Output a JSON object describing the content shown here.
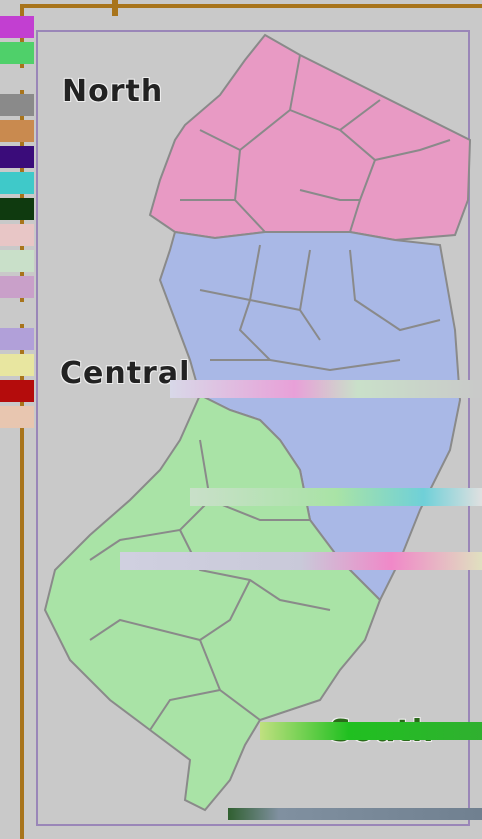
{
  "map": {
    "regions": [
      {
        "id": "north",
        "label": "North",
        "color": "#e89ac4"
      },
      {
        "id": "central",
        "label": "Central",
        "color": "#a9b8e6"
      },
      {
        "id": "south",
        "label": "South",
        "color": "#a9e3a6"
      }
    ],
    "border_color": "#8a8a8a",
    "frame_color": "#a8741b"
  },
  "legend": {
    "swatches": [
      "#c23fd1",
      "#4fd06a",
      "#c9c9c9",
      "#8a8a8a",
      "#c98a4f",
      "#3a0c7a",
      "#3fc9c9",
      "#0f3a0f",
      "#e8c6c6",
      "#c9e0c9",
      "#c9a0c9",
      "#c9c9c9",
      "#b1a0d9",
      "#e8e6a0",
      "#b40c0c",
      "#e8c6b0"
    ]
  }
}
